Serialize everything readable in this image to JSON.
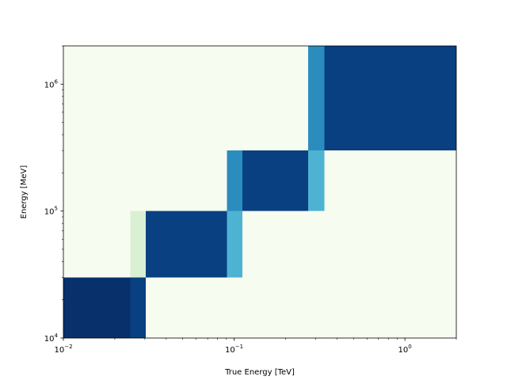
{
  "chart_data": {
    "type": "heatmap",
    "title": "",
    "xlabel": "True Energy [TeV]",
    "ylabel": "Energy [MeV]",
    "xscale": "log",
    "yscale": "log",
    "xlim": [
      0.01,
      2
    ],
    "ylim": [
      10000,
      2000000
    ],
    "grid": false,
    "background_color": "#f7fcf0",
    "x_ticks": [
      {
        "value": 0.01,
        "base": "10",
        "exp": "−2"
      },
      {
        "value": 0.1,
        "base": "10",
        "exp": "−1"
      },
      {
        "value": 1,
        "base": "10",
        "exp": "0"
      }
    ],
    "y_ticks": [
      {
        "value": 10000,
        "base": "10",
        "exp": "4"
      },
      {
        "value": 100000,
        "base": "10",
        "exp": "5"
      },
      {
        "value": 1000000,
        "base": "10",
        "exp": "6"
      }
    ],
    "cells": [
      {
        "x": [
          0.01,
          0.0246
        ],
        "y": [
          10000,
          30000
        ],
        "color": "#08306b"
      },
      {
        "x": [
          0.0246,
          0.0304
        ],
        "y": [
          10000,
          30000
        ],
        "color": "#084081"
      },
      {
        "x": [
          0.0246,
          0.0304
        ],
        "y": [
          30000,
          100000
        ],
        "color": "#d9f0d3"
      },
      {
        "x": [
          0.0304,
          0.0906
        ],
        "y": [
          30000,
          100000
        ],
        "color": "#084081"
      },
      {
        "x": [
          0.0906,
          0.112
        ],
        "y": [
          30000,
          100000
        ],
        "color": "#4eb3d3"
      },
      {
        "x": [
          0.0906,
          0.112
        ],
        "y": [
          100000,
          300000
        ],
        "color": "#2b8cbe"
      },
      {
        "x": [
          0.112,
          0.272
        ],
        "y": [
          100000,
          300000
        ],
        "color": "#084081"
      },
      {
        "x": [
          0.272,
          0.337
        ],
        "y": [
          100000,
          300000
        ],
        "color": "#4eb3d3"
      },
      {
        "x": [
          0.272,
          0.337
        ],
        "y": [
          300000,
          2000000
        ],
        "color": "#2b8cbe"
      },
      {
        "x": [
          0.337,
          2
        ],
        "y": [
          300000,
          2000000
        ],
        "color": "#084081"
      }
    ]
  }
}
